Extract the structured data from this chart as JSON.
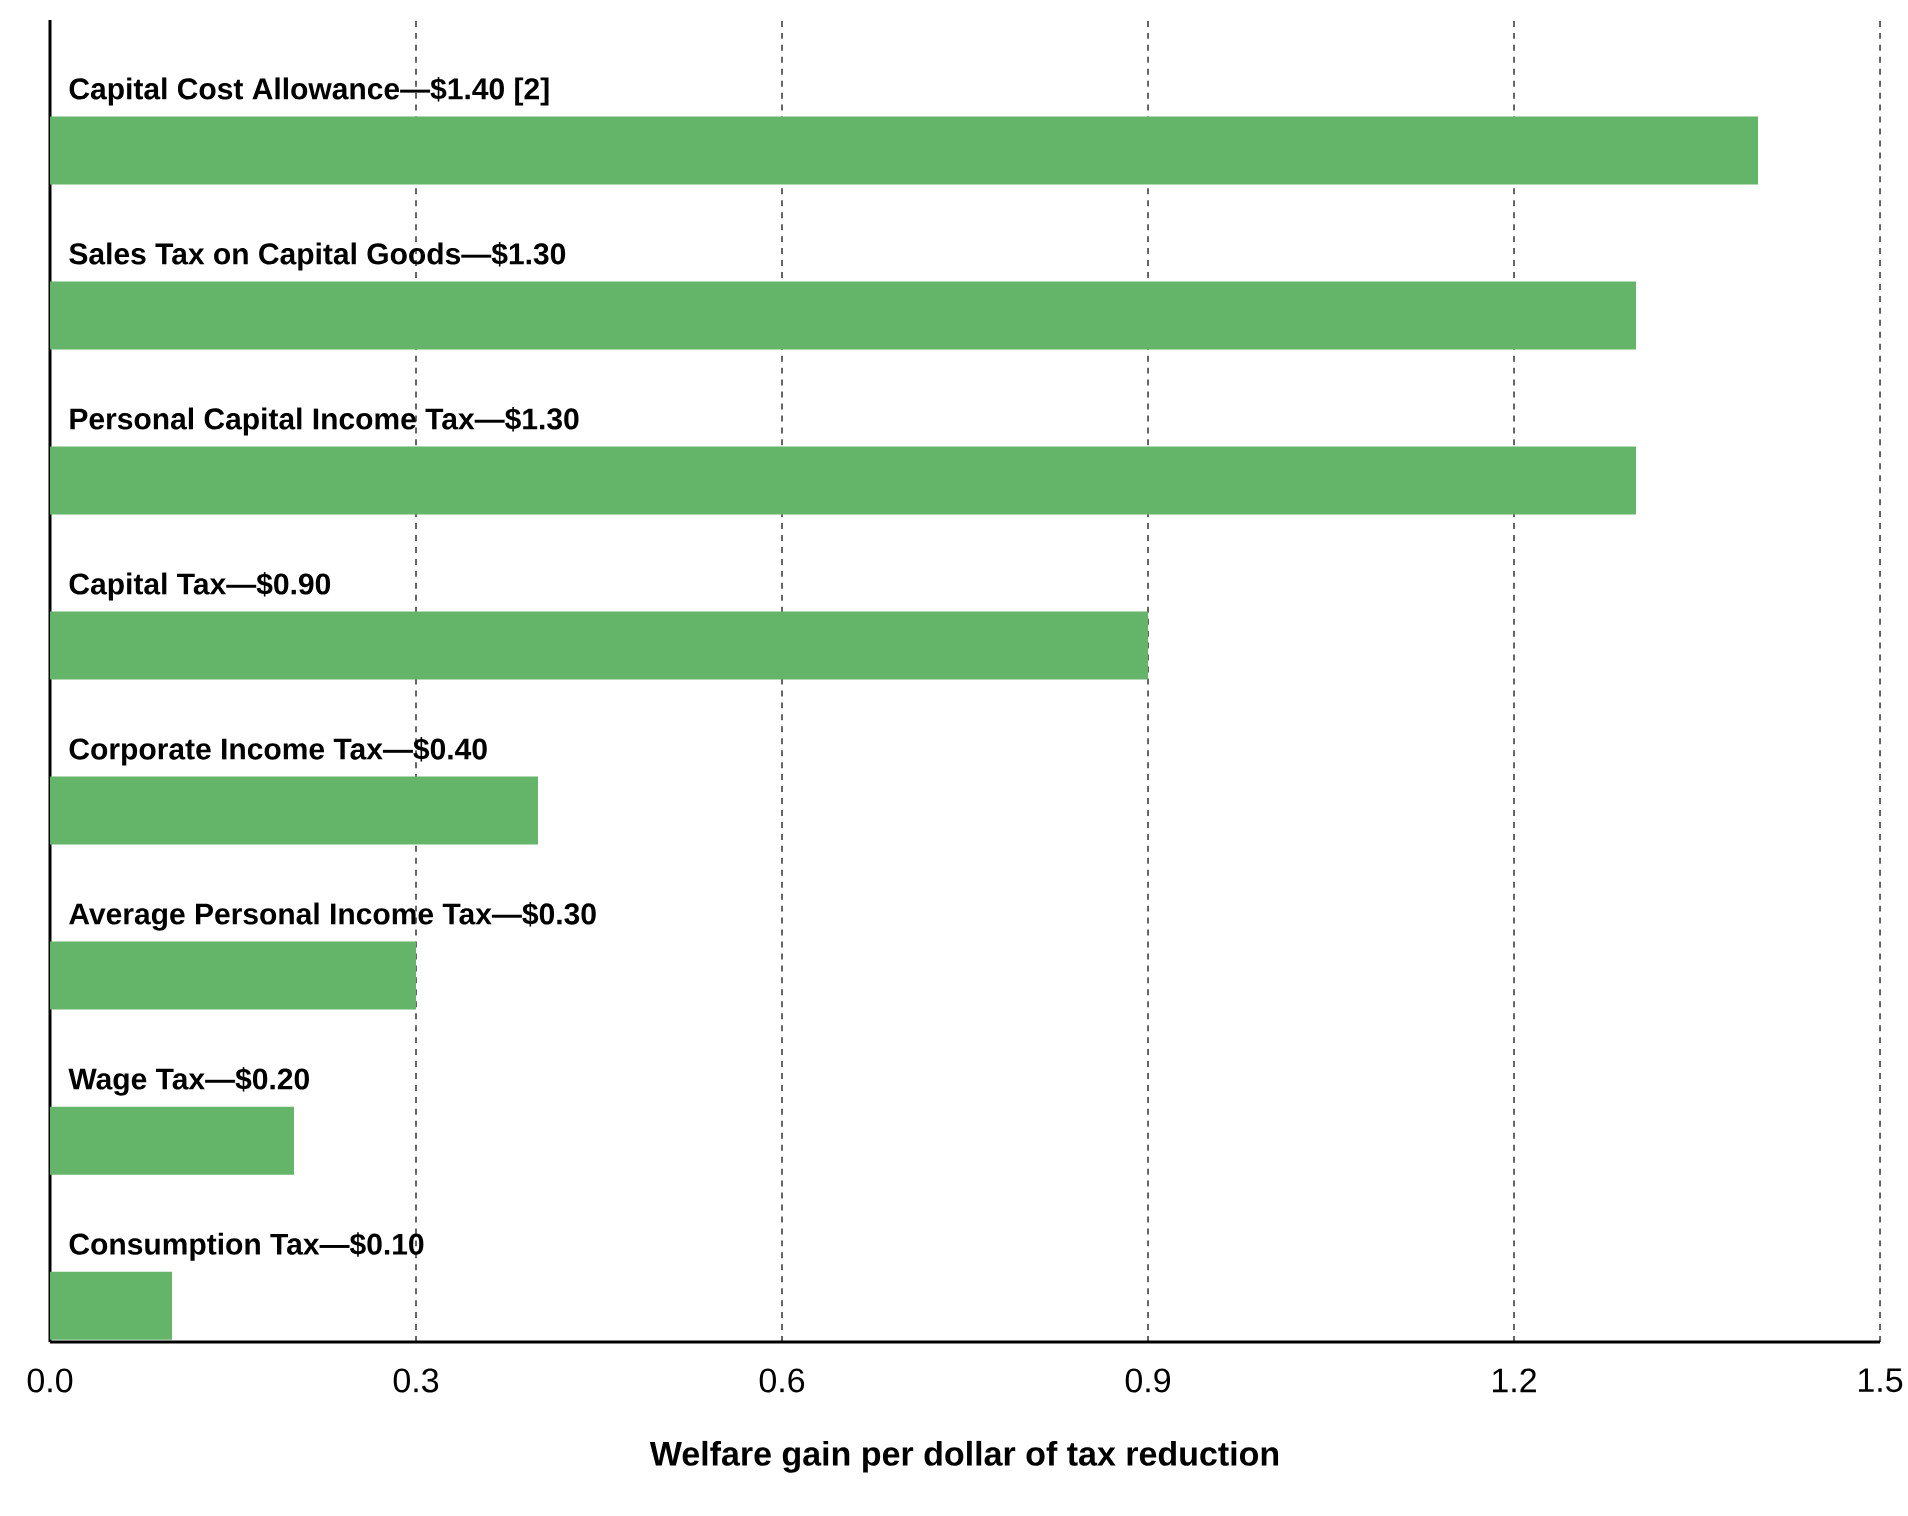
{
  "chart_data": {
    "type": "bar",
    "orientation": "horizontal",
    "categories": [
      "**Capital Cost Allowance—$1.40** [2]",
      "Sales Tax on Capital Goods—$1.30",
      "Personal Capital Income Tax—$1.30",
      "Capital Tax—$0.90",
      "Corporate Income Tax—$0.40",
      "Average Personal Income Tax—$0.30",
      "Wage Tax—$0.20",
      "Consumption Tax—$0.10"
    ],
    "values": [
      1.4,
      1.3,
      1.3,
      0.9,
      0.4,
      0.3,
      0.2,
      0.1
    ],
    "color": "#64b46a",
    "xlabel": "Welfare gain per dollar of tax reduction",
    "xlim": [
      0,
      1.5
    ],
    "xticks": [
      {
        "value": 0,
        "label": "0.0"
      },
      0.3,
      0.6,
      0.9,
      1.2,
      1.5
    ],
    "grid": "x"
  }
}
